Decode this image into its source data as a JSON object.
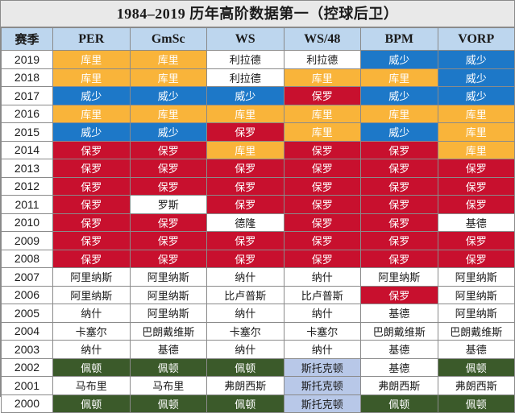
{
  "title": "1984–2019 历年高阶数据第一（控球后卫）",
  "palette": {
    "w": "#ffffff",
    "o": "#f9b43a",
    "b": "#1d78c8",
    "r": "#c8102e",
    "g": "#3b5a2a",
    "l": "#b8c8e8",
    "header": "#bdd6ee"
  },
  "columns": [
    "赛季",
    "PER",
    "GmSc",
    "WS",
    "WS/48",
    "BPM",
    "VORP"
  ],
  "rows": [
    {
      "year": "2019",
      "cells": [
        {
          "t": "库里",
          "c": "o"
        },
        {
          "t": "库里",
          "c": "o"
        },
        {
          "t": "利拉德",
          "c": "w"
        },
        {
          "t": "利拉德",
          "c": "w"
        },
        {
          "t": "威少",
          "c": "b"
        },
        {
          "t": "威少",
          "c": "b"
        }
      ]
    },
    {
      "year": "2018",
      "cells": [
        {
          "t": "库里",
          "c": "o"
        },
        {
          "t": "库里",
          "c": "o"
        },
        {
          "t": "利拉德",
          "c": "w"
        },
        {
          "t": "库里",
          "c": "o"
        },
        {
          "t": "库里",
          "c": "o"
        },
        {
          "t": "威少",
          "c": "b"
        }
      ]
    },
    {
      "year": "2017",
      "cells": [
        {
          "t": "威少",
          "c": "b"
        },
        {
          "t": "威少",
          "c": "b"
        },
        {
          "t": "威少",
          "c": "b"
        },
        {
          "t": "保罗",
          "c": "r"
        },
        {
          "t": "威少",
          "c": "b"
        },
        {
          "t": "威少",
          "c": "b"
        }
      ]
    },
    {
      "year": "2016",
      "cells": [
        {
          "t": "库里",
          "c": "o"
        },
        {
          "t": "库里",
          "c": "o"
        },
        {
          "t": "库里",
          "c": "o"
        },
        {
          "t": "库里",
          "c": "o"
        },
        {
          "t": "库里",
          "c": "o"
        },
        {
          "t": "库里",
          "c": "o"
        }
      ]
    },
    {
      "year": "2015",
      "cells": [
        {
          "t": "威少",
          "c": "b"
        },
        {
          "t": "威少",
          "c": "b"
        },
        {
          "t": "保罗",
          "c": "r"
        },
        {
          "t": "库里",
          "c": "o"
        },
        {
          "t": "威少",
          "c": "b"
        },
        {
          "t": "库里",
          "c": "o"
        }
      ]
    },
    {
      "year": "2014",
      "cells": [
        {
          "t": "保罗",
          "c": "r"
        },
        {
          "t": "保罗",
          "c": "r"
        },
        {
          "t": "库里",
          "c": "o"
        },
        {
          "t": "保罗",
          "c": "r"
        },
        {
          "t": "保罗",
          "c": "r"
        },
        {
          "t": "库里",
          "c": "o"
        }
      ]
    },
    {
      "year": "2013",
      "cells": [
        {
          "t": "保罗",
          "c": "r"
        },
        {
          "t": "保罗",
          "c": "r"
        },
        {
          "t": "保罗",
          "c": "r"
        },
        {
          "t": "保罗",
          "c": "r"
        },
        {
          "t": "保罗",
          "c": "r"
        },
        {
          "t": "保罗",
          "c": "r"
        }
      ]
    },
    {
      "year": "2012",
      "cells": [
        {
          "t": "保罗",
          "c": "r"
        },
        {
          "t": "保罗",
          "c": "r"
        },
        {
          "t": "保罗",
          "c": "r"
        },
        {
          "t": "保罗",
          "c": "r"
        },
        {
          "t": "保罗",
          "c": "r"
        },
        {
          "t": "保罗",
          "c": "r"
        }
      ]
    },
    {
      "year": "2011",
      "cells": [
        {
          "t": "保罗",
          "c": "r"
        },
        {
          "t": "罗斯",
          "c": "w"
        },
        {
          "t": "保罗",
          "c": "r"
        },
        {
          "t": "保罗",
          "c": "r"
        },
        {
          "t": "保罗",
          "c": "r"
        },
        {
          "t": "保罗",
          "c": "r"
        }
      ]
    },
    {
      "year": "2010",
      "cells": [
        {
          "t": "保罗",
          "c": "r"
        },
        {
          "t": "保罗",
          "c": "r"
        },
        {
          "t": "德隆",
          "c": "w"
        },
        {
          "t": "保罗",
          "c": "r"
        },
        {
          "t": "保罗",
          "c": "r"
        },
        {
          "t": "基德",
          "c": "w"
        }
      ]
    },
    {
      "year": "2009",
      "cells": [
        {
          "t": "保罗",
          "c": "r"
        },
        {
          "t": "保罗",
          "c": "r"
        },
        {
          "t": "保罗",
          "c": "r"
        },
        {
          "t": "保罗",
          "c": "r"
        },
        {
          "t": "保罗",
          "c": "r"
        },
        {
          "t": "保罗",
          "c": "r"
        }
      ]
    },
    {
      "year": "2008",
      "cells": [
        {
          "t": "保罗",
          "c": "r"
        },
        {
          "t": "保罗",
          "c": "r"
        },
        {
          "t": "保罗",
          "c": "r"
        },
        {
          "t": "保罗",
          "c": "r"
        },
        {
          "t": "保罗",
          "c": "r"
        },
        {
          "t": "保罗",
          "c": "r"
        }
      ]
    },
    {
      "year": "2007",
      "cells": [
        {
          "t": "阿里纳斯",
          "c": "w"
        },
        {
          "t": "阿里纳斯",
          "c": "w"
        },
        {
          "t": "纳什",
          "c": "w"
        },
        {
          "t": "纳什",
          "c": "w"
        },
        {
          "t": "阿里纳斯",
          "c": "w"
        },
        {
          "t": "阿里纳斯",
          "c": "w"
        }
      ]
    },
    {
      "year": "2006",
      "cells": [
        {
          "t": "阿里纳斯",
          "c": "w"
        },
        {
          "t": "阿里纳斯",
          "c": "w"
        },
        {
          "t": "比卢普斯",
          "c": "w"
        },
        {
          "t": "比卢普斯",
          "c": "w"
        },
        {
          "t": "保罗",
          "c": "r"
        },
        {
          "t": "阿里纳斯",
          "c": "w"
        }
      ]
    },
    {
      "year": "2005",
      "cells": [
        {
          "t": "纳什",
          "c": "w"
        },
        {
          "t": "阿里纳斯",
          "c": "w"
        },
        {
          "t": "纳什",
          "c": "w"
        },
        {
          "t": "纳什",
          "c": "w"
        },
        {
          "t": "基德",
          "c": "w"
        },
        {
          "t": "阿里纳斯",
          "c": "w"
        }
      ]
    },
    {
      "year": "2004",
      "cells": [
        {
          "t": "卡塞尔",
          "c": "w"
        },
        {
          "t": "巴朗戴维斯",
          "c": "w"
        },
        {
          "t": "卡塞尔",
          "c": "w"
        },
        {
          "t": "卡塞尔",
          "c": "w"
        },
        {
          "t": "巴朗戴维斯",
          "c": "w"
        },
        {
          "t": "巴朗戴维斯",
          "c": "w"
        }
      ]
    },
    {
      "year": "2003",
      "cells": [
        {
          "t": "纳什",
          "c": "w"
        },
        {
          "t": "基德",
          "c": "w"
        },
        {
          "t": "纳什",
          "c": "w"
        },
        {
          "t": "纳什",
          "c": "w"
        },
        {
          "t": "基德",
          "c": "w"
        },
        {
          "t": "基德",
          "c": "w"
        }
      ]
    },
    {
      "year": "2002",
      "cells": [
        {
          "t": "佩顿",
          "c": "g"
        },
        {
          "t": "佩顿",
          "c": "g"
        },
        {
          "t": "佩顿",
          "c": "g"
        },
        {
          "t": "斯托克顿",
          "c": "l"
        },
        {
          "t": "基德",
          "c": "w"
        },
        {
          "t": "佩顿",
          "c": "g"
        }
      ]
    },
    {
      "year": "2001",
      "cells": [
        {
          "t": "马布里",
          "c": "w"
        },
        {
          "t": "马布里",
          "c": "w"
        },
        {
          "t": "弗朗西斯",
          "c": "w"
        },
        {
          "t": "斯托克顿",
          "c": "l"
        },
        {
          "t": "弗朗西斯",
          "c": "w"
        },
        {
          "t": "弗朗西斯",
          "c": "w"
        }
      ]
    },
    {
      "year": "2000",
      "cells": [
        {
          "t": "佩顿",
          "c": "g"
        },
        {
          "t": "佩顿",
          "c": "g"
        },
        {
          "t": "佩顿",
          "c": "g"
        },
        {
          "t": "斯托克顿",
          "c": "l"
        },
        {
          "t": "佩顿",
          "c": "g"
        },
        {
          "t": "佩顿",
          "c": "g"
        }
      ]
    }
  ]
}
